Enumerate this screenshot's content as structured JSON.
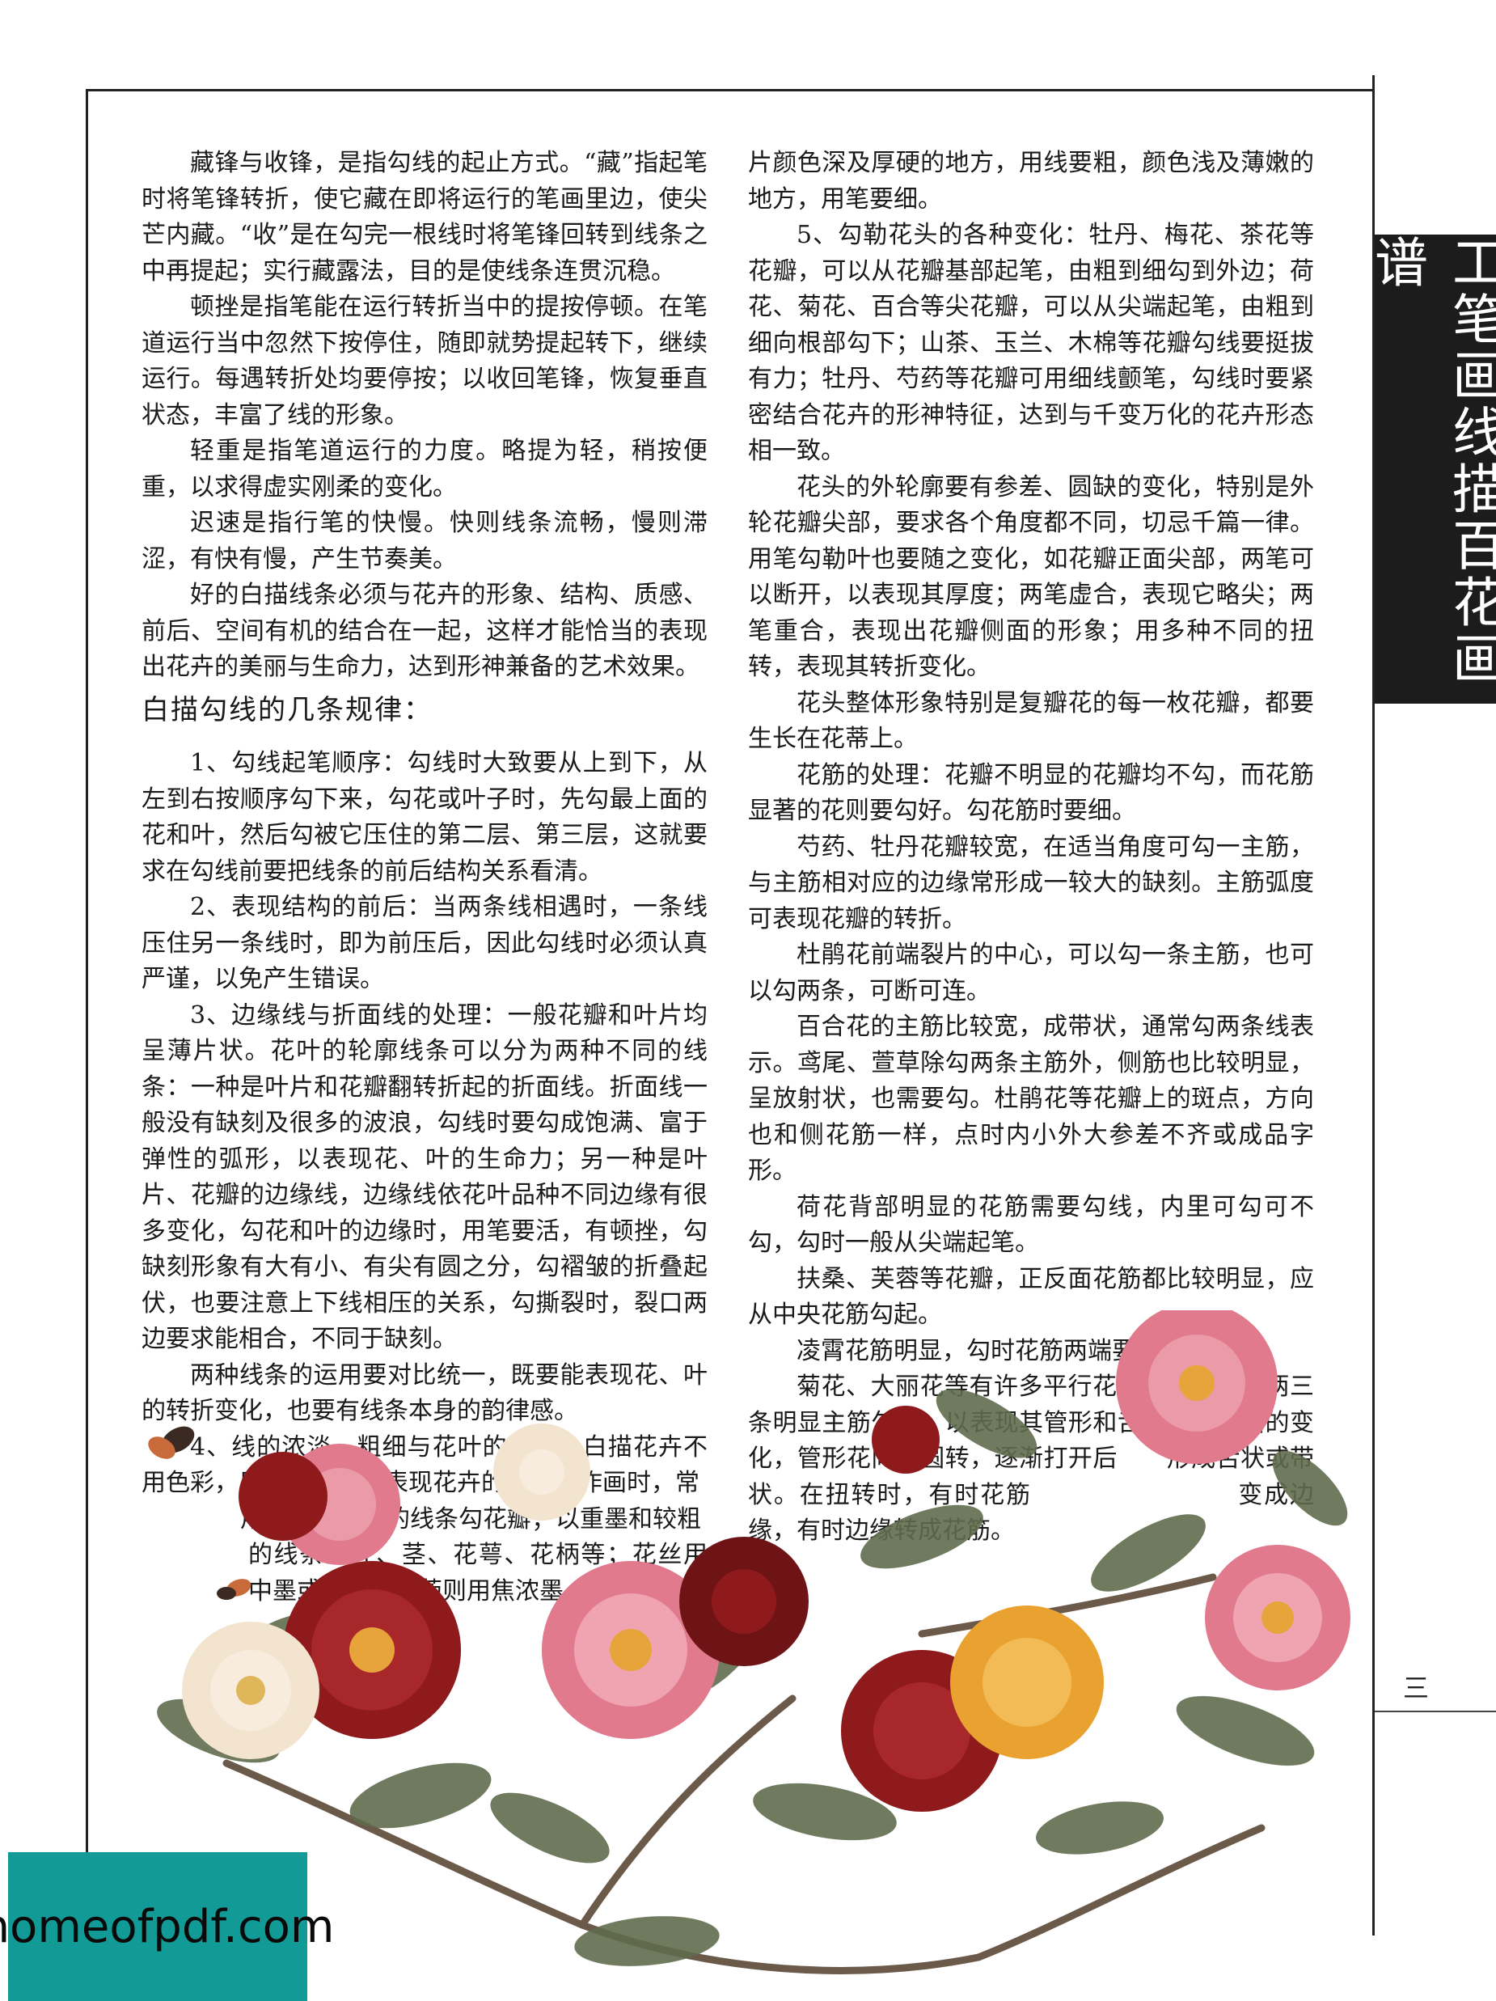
{
  "side_title": "工笔画线描百花画谱",
  "page_number": "三",
  "left_column": {
    "p1": "藏锋与收锋，是指勾线的起止方式。“藏”指起笔时将笔锋转折，使它藏在即将运行的笔画里边，使尖芒内藏。“收”是在勾完一根线时将笔锋回转到线条之中再提起；实行藏露法，目的是使线条连贯沉稳。",
    "p2": "顿挫是指笔能在运行转折当中的提按停顿。在笔道运行当中忽然下按停住，随即就势提起转下，继续运行。每遇转折处均要停按；以收回笔锋，恢复垂直状态，丰富了线的形象。",
    "p3": "轻重是指笔道运行的力度。略提为轻，稍按便重，以求得虚实刚柔的变化。",
    "p4": "迟速是指行笔的快慢。快则线条流畅，慢则滞涩，有快有慢，产生节奏美。",
    "p5": "好的白描线条必须与花卉的形象、结构、质感、前后、空间有机的结合在一起，这样才能恰当的表现出花卉的美丽与生命力，达到形神兼备的艺术效果。",
    "heading": "白描勾线的几条规律：",
    "r1": "1、勾线起笔顺序：勾线时大致要从上到下，从左到右按顺序勾下来，勾花或叶子时，先勾最上面的花和叶，然后勾被它压住的第二层、第三层，这就要求在勾线前要把线条的前后结构关系看清。",
    "r2": "2、表现结构的前后：当两条线相遇时，一条线压住另一条线时，即为前压后，因此勾线时必须认真严谨，以免产生错误。",
    "r3": "3、边缘线与折面线的处理：一般花瓣和叶片均呈薄片状。花叶的轮廓线条可以分为两种不同的线条：一种是叶片和花瓣翻转折起的折面线。折面线一般没有缺刻及很多的波浪，勾线时要勾成饱满、富于弹性的弧形，以表现花、叶的生命力；另一种是叶片、花瓣的边缘线，边缘线依花叶品种不同边缘有很多变化，勾花和叶的边缘时，用笔要活，有顿挫，勾缺刻形象有大有小、有尖有圆之分，勾褶皱的折叠起伏，也要注意上下线相压的关系，勾撕裂时，裂口两边要求能相合，不同于缺刻。",
    "r3b": "两种线条的运用要对比统一，既要能表现花、叶的转折变化，也要有线条本身的韵律感。",
    "r4a": "4、线的浓淡、粗细与花叶的质感：白描花卉不用色彩，只用墨色变化表现花卉的质感。作画时，常",
    "r4b": "用淡墨和较细的线条勾花瓣；以重墨和较粗",
    "r4c": "的线条勾叶、茎、花萼、花柄等；花丝用中墨或淡墨；花药则用焦浓墨。花瓣、叶"
  },
  "right_column": {
    "p0": "片颜色深及厚硬的地方，用线要粗，颜色浅及薄嫩的地方，用笔要细。",
    "p1": "5、勾勒花头的各种变化：牡丹、梅花、茶花等花瓣，可以从花瓣基部起笔，由粗到细勾到外边；荷花、菊花、百合等尖花瓣，可以从尖端起笔，由粗到细向根部勾下；山茶、玉兰、木棉等花瓣勾线要挺拔有力；牡丹、芍药等花瓣可用细线颤笔，勾线时要紧密结合花卉的形神特征，达到与千变万化的花卉形态相一致。",
    "p2": "花头的外轮廓要有参差、圆缺的变化，特别是外轮花瓣尖部，要求各个角度都不同，切忌千篇一律。用笔勾勒叶也要随之变化，如花瓣正面尖部，两笔可以断开，以表现其厚度；两笔虚合，表现它略尖；两笔重合，表现出花瓣侧面的形象；用多种不同的扭转，表现其转折变化。",
    "p3": "花头整体形象特别是复瓣花的每一枚花瓣，都要生长在花蒂上。",
    "p4": "花筋的处理：花瓣不明显的花瓣均不勾，而花筋显著的花则要勾好。勾花筋时要细。",
    "p5": "芍药、牡丹花瓣较宽，在适当角度可勾一主筋，与主筋相对应的边缘常形成一较大的缺刻。主筋弧度可表现花瓣的转折。",
    "p6": "杜鹃花前端裂片的中心，可以勾一条主筋，也可以勾两条，可断可连。",
    "p7": "百合花的主筋比较宽，成带状，通常勾两条线表示。鸢尾、萱草除勾两条主筋外，侧筋也比较明显，呈放射状，也需要勾。杜鹃花等花瓣上的斑点，方向也和侧花筋一样，点时内小外大参差不齐或成品字形。",
    "p8": "荷花背部明显的花筋需要勾线，内里可勾可不勾，勾时一般从尖端起笔。",
    "p9": "扶桑、芙蓉等花瓣，正反面花筋都比较明显，应从中央花筋勾起。",
    "p10": "凌霄花筋明显，勾时花筋两端要虚入虚出。",
    "p11": "菊花、大丽花等有许多平行花筋，一般选择两三条明显主筋勾出，以表现其管形和舌形的三个面的变化，管形花向内圆转，逐渐打开后　　形成舌状或带状。在扭转时，有时花筋　　　　　　　　变成边缘，有时边缘转成花筋。"
  },
  "watermark": "homeofpdf.com",
  "colors": {
    "side_bar": "#1c1c1c",
    "watermark_bg": "#129a96",
    "peony_pink": "#e07a8c",
    "peony_red": "#8e1a1c",
    "peony_yellow": "#e9a230",
    "peony_white": "#f3e4cf",
    "leaf": "#5f6b4c"
  }
}
